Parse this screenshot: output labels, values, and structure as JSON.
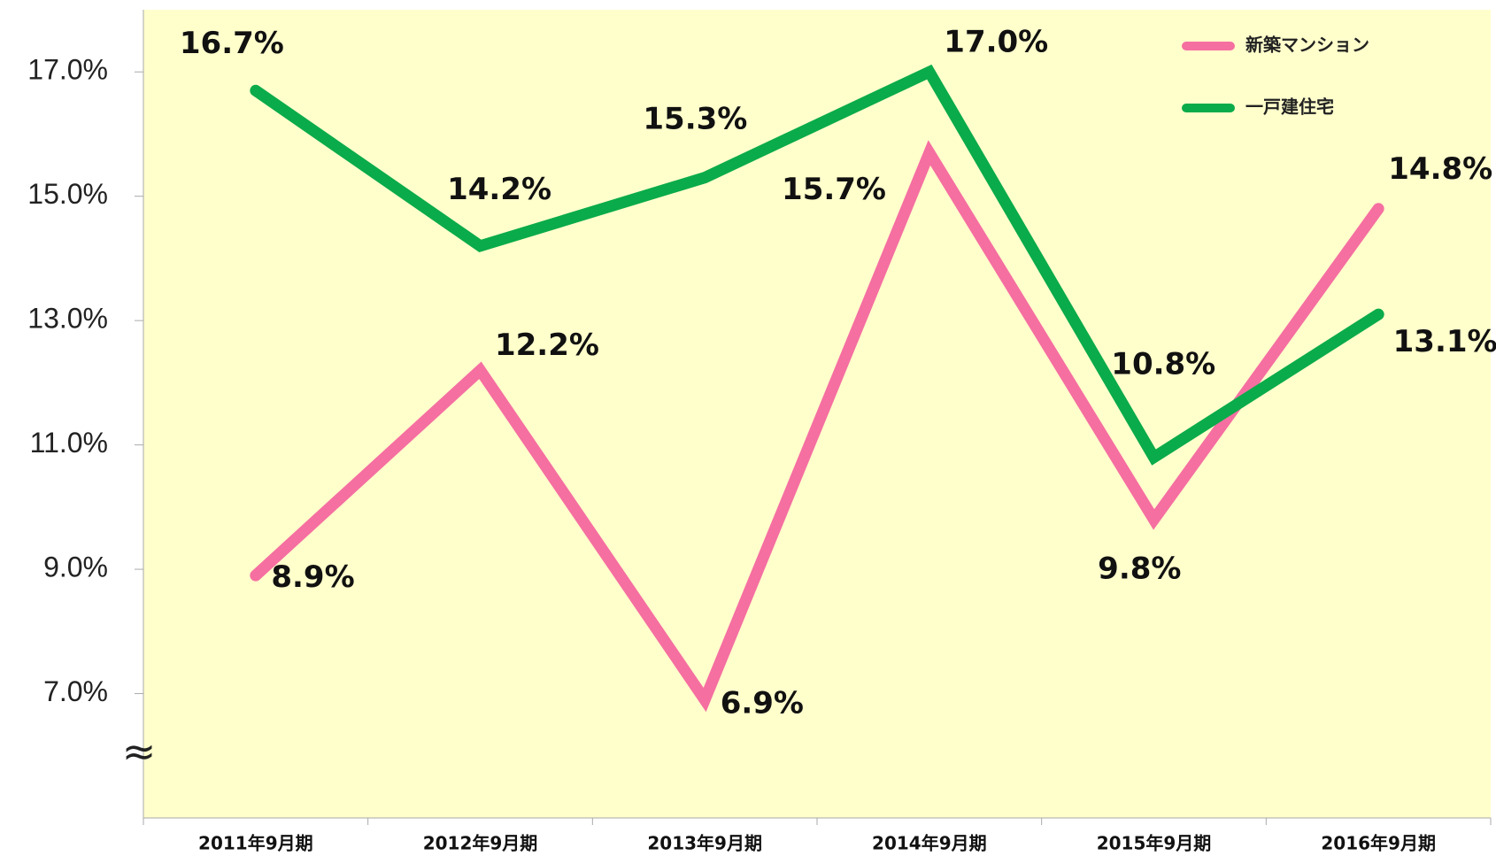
{
  "chart_data": {
    "type": "line",
    "categories": [
      "2011年9月期",
      "2012年9月期",
      "2013年9月期",
      "2014年9月期",
      "2015年9月期",
      "2016年9月期"
    ],
    "series": [
      {
        "name": "新築マンション",
        "color": "#f56fa1",
        "values": [
          8.9,
          12.2,
          6.9,
          15.7,
          9.8,
          14.8
        ],
        "value_labels": [
          "8.9%",
          "12.2%",
          "6.9%",
          "15.7%",
          "9.8%",
          "14.8%"
        ]
      },
      {
        "name": "一戸建住宅",
        "color": "#0aab4a",
        "values": [
          16.7,
          14.2,
          15.3,
          17.0,
          10.8,
          13.1
        ],
        "value_labels": [
          "16.7%",
          "14.2%",
          "15.3%",
          "17.0%",
          "10.8%",
          "13.1%"
        ]
      }
    ],
    "ylim": [
      5,
      18
    ],
    "yticks": [
      {
        "value": 7,
        "label": "7.0%"
      },
      {
        "value": 9,
        "label": "9.0%"
      },
      {
        "value": 11,
        "label": "11.0%"
      },
      {
        "value": 13,
        "label": "13.0%"
      },
      {
        "value": 15,
        "label": "15.0%"
      },
      {
        "value": 17,
        "label": "17.0%"
      }
    ],
    "annotations": [
      "≈"
    ],
    "legend": "top-right",
    "background": "#ffffcc"
  }
}
